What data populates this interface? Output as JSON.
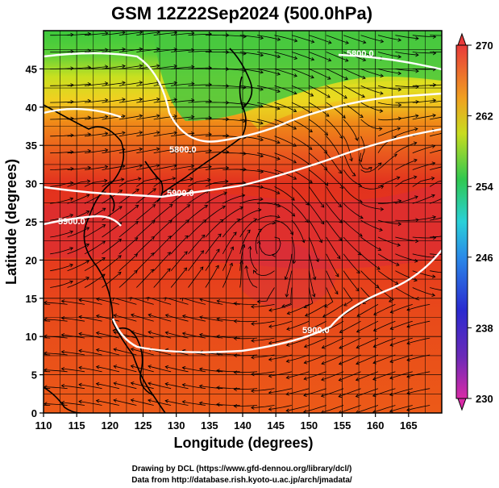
{
  "title": "GSM 12Z22Sep2024 (500.0hPa)",
  "xlabel": "Longitude (degrees)",
  "ylabel": "Latitude  (degrees)",
  "x_ticks": [
    "110",
    "115",
    "120",
    "125",
    "130",
    "135",
    "140",
    "145",
    "150",
    "155",
    "160",
    "165"
  ],
  "y_ticks": [
    "0",
    "5",
    "10",
    "15",
    "20",
    "25",
    "30",
    "35",
    "40",
    "45"
  ],
  "colorbar_ticks": [
    "270",
    "262",
    "254",
    "246",
    "238",
    "230"
  ],
  "contour_labels": [
    "5800.0",
    "5900.0",
    "5900.0",
    "5900.0",
    "5800.0"
  ],
  "credits": {
    "line1": "Drawing by DCL (https://www.gfd-dennou.org/library/dcl/)",
    "line2": "Data from http://database.rish.kyoto-u.ac.jp/arch/jmadata/"
  },
  "colors": {
    "warm": "#e8321e",
    "hot": "#d7263c",
    "orange": "#f07a18",
    "yellow": "#e8e020",
    "green": "#3cc83c",
    "contour": "#ffffff",
    "coastline": "#000000"
  },
  "chart_data": {
    "type": "heatmap",
    "field": "temperature (K) at 500.0hPa with wind streamlines and height contours",
    "x_range": [
      110,
      170
    ],
    "y_range": [
      0,
      50
    ],
    "colorbar_range": [
      230,
      270
    ],
    "contour_levels": [
      5800,
      5900
    ]
  }
}
